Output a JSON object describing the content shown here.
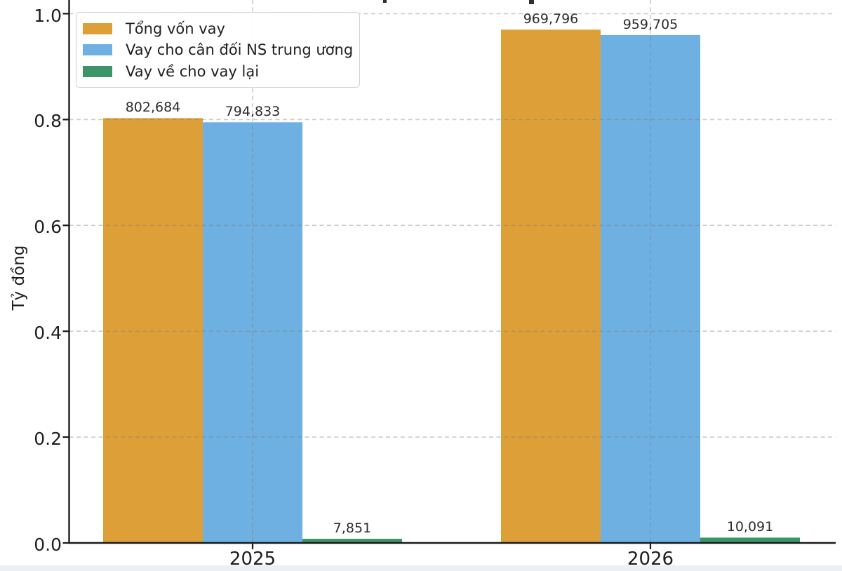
{
  "chart_data": {
    "type": "bar",
    "categories": [
      "2025",
      "2026"
    ],
    "series": [
      {
        "name": "Tổng vốn vay",
        "color": "#DDA038",
        "values": [
          802684,
          969796
        ],
        "value_labels": [
          "802,684",
          "969,796"
        ]
      },
      {
        "name": "Vay cho cân đối NS trung ương",
        "color": "#6EB0E1",
        "values": [
          794833,
          959705
        ],
        "value_labels": [
          "794,833",
          "959,705"
        ]
      },
      {
        "name": "Vay về cho vay lại",
        "color": "#3D9468",
        "values": [
          7851,
          10091
        ],
        "value_labels": [
          "7,851",
          "10,091"
        ]
      }
    ],
    "ylabel": "Tỷ đồng",
    "yticks": [
      0,
      0.2,
      0.4,
      0.6,
      0.8,
      1.0
    ],
    "ytick_labels": [
      "0.0",
      "0.2",
      "0.4",
      "0.6",
      "0.8",
      "1.0"
    ],
    "ylim": [
      0,
      1.0
    ],
    "y_unit_scale": 1000000,
    "grid": {
      "style": "dashed",
      "axes": "both",
      "drawn_above_bars": true
    },
    "legend_position": "upper-left"
  }
}
